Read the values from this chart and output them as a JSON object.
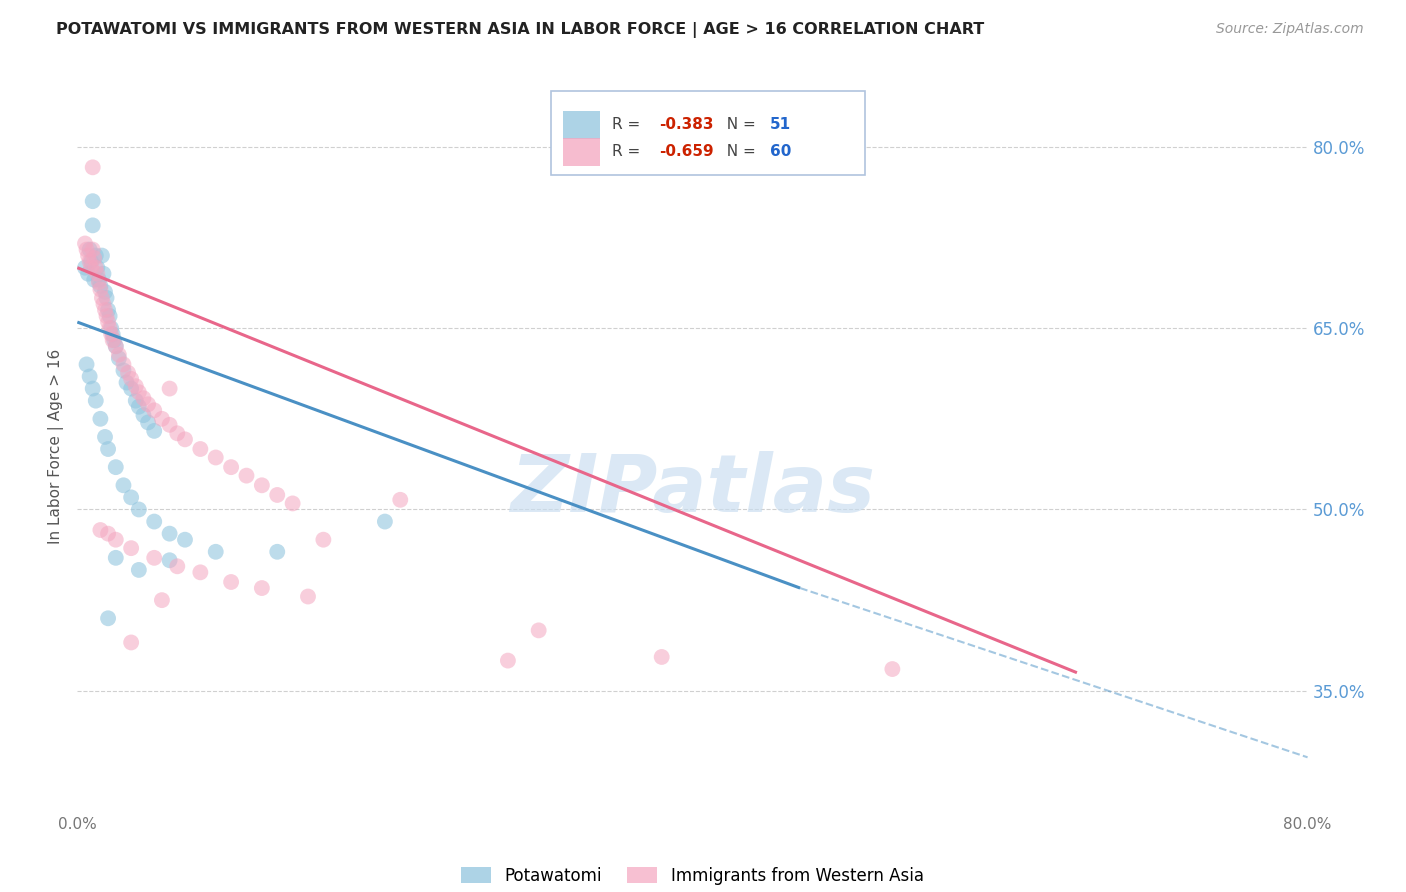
{
  "title": "POTAWATOMI VS IMMIGRANTS FROM WESTERN ASIA IN LABOR FORCE | AGE > 16 CORRELATION CHART",
  "source": "Source: ZipAtlas.com",
  "ylabel": "In Labor Force | Age > 16",
  "R_blue": -0.383,
  "N_blue": 51,
  "R_pink": -0.659,
  "N_pink": 60,
  "blue_color": "#92c5de",
  "pink_color": "#f4a6c0",
  "blue_line_color": "#4a90c4",
  "pink_line_color": "#e8668a",
  "blue_line_solid": [
    [
      0.0,
      0.655
    ],
    [
      0.47,
      0.435
    ]
  ],
  "blue_line_dash": [
    [
      0.47,
      0.435
    ],
    [
      0.8,
      0.295
    ]
  ],
  "pink_line_solid": [
    [
      0.0,
      0.7
    ],
    [
      0.65,
      0.365
    ]
  ],
  "blue_scatter": [
    [
      0.005,
      0.7
    ],
    [
      0.007,
      0.695
    ],
    [
      0.008,
      0.715
    ],
    [
      0.009,
      0.705
    ],
    [
      0.01,
      0.755
    ],
    [
      0.01,
      0.735
    ],
    [
      0.011,
      0.69
    ],
    [
      0.012,
      0.71
    ],
    [
      0.013,
      0.7
    ],
    [
      0.014,
      0.69
    ],
    [
      0.015,
      0.685
    ],
    [
      0.016,
      0.71
    ],
    [
      0.017,
      0.695
    ],
    [
      0.018,
      0.68
    ],
    [
      0.019,
      0.675
    ],
    [
      0.02,
      0.665
    ],
    [
      0.021,
      0.66
    ],
    [
      0.022,
      0.65
    ],
    [
      0.023,
      0.645
    ],
    [
      0.024,
      0.64
    ],
    [
      0.025,
      0.635
    ],
    [
      0.027,
      0.625
    ],
    [
      0.03,
      0.615
    ],
    [
      0.032,
      0.605
    ],
    [
      0.035,
      0.6
    ],
    [
      0.038,
      0.59
    ],
    [
      0.04,
      0.585
    ],
    [
      0.043,
      0.578
    ],
    [
      0.046,
      0.572
    ],
    [
      0.05,
      0.565
    ],
    [
      0.006,
      0.62
    ],
    [
      0.008,
      0.61
    ],
    [
      0.01,
      0.6
    ],
    [
      0.012,
      0.59
    ],
    [
      0.015,
      0.575
    ],
    [
      0.018,
      0.56
    ],
    [
      0.02,
      0.55
    ],
    [
      0.025,
      0.535
    ],
    [
      0.03,
      0.52
    ],
    [
      0.035,
      0.51
    ],
    [
      0.04,
      0.5
    ],
    [
      0.05,
      0.49
    ],
    [
      0.06,
      0.48
    ],
    [
      0.07,
      0.475
    ],
    [
      0.09,
      0.465
    ],
    [
      0.025,
      0.46
    ],
    [
      0.04,
      0.45
    ],
    [
      0.06,
      0.458
    ],
    [
      0.13,
      0.465
    ],
    [
      0.2,
      0.49
    ],
    [
      0.02,
      0.41
    ]
  ],
  "pink_scatter": [
    [
      0.005,
      0.72
    ],
    [
      0.006,
      0.715
    ],
    [
      0.007,
      0.71
    ],
    [
      0.008,
      0.705
    ],
    [
      0.009,
      0.7
    ],
    [
      0.01,
      0.715
    ],
    [
      0.011,
      0.708
    ],
    [
      0.012,
      0.7
    ],
    [
      0.013,
      0.695
    ],
    [
      0.014,
      0.688
    ],
    [
      0.015,
      0.682
    ],
    [
      0.016,
      0.675
    ],
    [
      0.017,
      0.67
    ],
    [
      0.018,
      0.665
    ],
    [
      0.019,
      0.66
    ],
    [
      0.02,
      0.655
    ],
    [
      0.021,
      0.65
    ],
    [
      0.022,
      0.645
    ],
    [
      0.023,
      0.64
    ],
    [
      0.025,
      0.635
    ],
    [
      0.027,
      0.628
    ],
    [
      0.03,
      0.62
    ],
    [
      0.033,
      0.613
    ],
    [
      0.035,
      0.608
    ],
    [
      0.038,
      0.602
    ],
    [
      0.04,
      0.597
    ],
    [
      0.043,
      0.592
    ],
    [
      0.046,
      0.587
    ],
    [
      0.05,
      0.582
    ],
    [
      0.055,
      0.575
    ],
    [
      0.06,
      0.57
    ],
    [
      0.065,
      0.563
    ],
    [
      0.07,
      0.558
    ],
    [
      0.08,
      0.55
    ],
    [
      0.09,
      0.543
    ],
    [
      0.1,
      0.535
    ],
    [
      0.11,
      0.528
    ],
    [
      0.12,
      0.52
    ],
    [
      0.13,
      0.512
    ],
    [
      0.14,
      0.505
    ],
    [
      0.015,
      0.483
    ],
    [
      0.02,
      0.48
    ],
    [
      0.025,
      0.475
    ],
    [
      0.035,
      0.468
    ],
    [
      0.05,
      0.46
    ],
    [
      0.065,
      0.453
    ],
    [
      0.08,
      0.448
    ],
    [
      0.1,
      0.44
    ],
    [
      0.12,
      0.435
    ],
    [
      0.15,
      0.428
    ],
    [
      0.055,
      0.425
    ],
    [
      0.3,
      0.4
    ],
    [
      0.01,
      0.783
    ],
    [
      0.21,
      0.508
    ],
    [
      0.38,
      0.378
    ],
    [
      0.53,
      0.368
    ],
    [
      0.035,
      0.39
    ],
    [
      0.28,
      0.375
    ],
    [
      0.06,
      0.6
    ],
    [
      0.16,
      0.475
    ]
  ],
  "xlim": [
    0.0,
    0.8
  ],
  "ylim": [
    0.25,
    0.855
  ],
  "yticks": [
    0.35,
    0.5,
    0.65,
    0.8
  ],
  "yticklabels": [
    "35.0%",
    "50.0%",
    "65.0%",
    "80.0%"
  ],
  "xticks": [
    0.0,
    0.2,
    0.4,
    0.6,
    0.8
  ],
  "xticklabels": [
    "0.0%",
    "",
    "",
    "",
    "80.0%"
  ],
  "watermark": "ZIPatlas",
  "background_color": "#ffffff",
  "grid_color": "#d0d0d0",
  "legend_blue_label": "Potawatomi",
  "legend_pink_label": "Immigrants from Western Asia"
}
